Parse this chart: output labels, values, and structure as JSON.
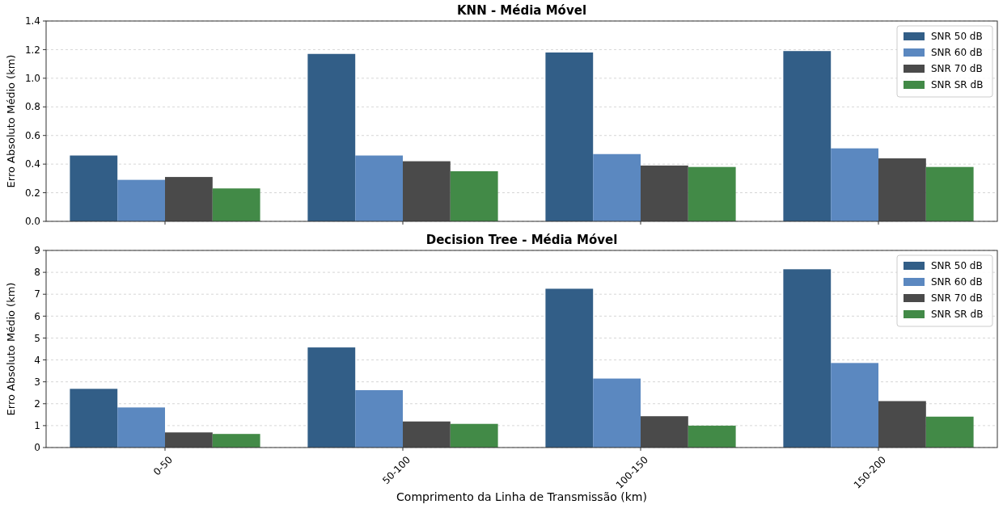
{
  "chart_data": [
    {
      "type": "bar",
      "title": "KNN - Média Móvel",
      "ylabel": "Erro Absoluto Médio (km)",
      "categories": [
        null,
        null,
        null,
        null
      ],
      "tick_labels": "y",
      "ylim": [
        0,
        1.4
      ],
      "yticks": [
        {
          "value": 0,
          "label": "0.0"
        },
        {
          "value": 0.2,
          "label": "0.2"
        },
        {
          "value": 0.4,
          "label": "0.4"
        },
        {
          "value": 0.6,
          "label": "0.6"
        },
        {
          "value": 0.8,
          "label": "0.8"
        },
        {
          "value": 1,
          "label": "1.0"
        },
        {
          "value": 1.2,
          "label": "1.2"
        },
        {
          "value": 1.4,
          "label": "1.4"
        }
      ],
      "grid": "y",
      "legend": "top right",
      "series": [
        {
          "name": "SNR 50 dB",
          "color": "#325e87",
          "values": [
            0.46,
            1.17,
            1.18,
            1.19
          ]
        },
        {
          "name": "SNR 60 dB",
          "color": "#5b88c0",
          "values": [
            0.29,
            0.46,
            0.47,
            0.51
          ]
        },
        {
          "name": "SNR 70 dB",
          "color": "#4a4a4a",
          "values": [
            0.31,
            0.42,
            0.39,
            0.44
          ]
        },
        {
          "name": "SNR SR dB",
          "color": "#428a47",
          "values": [
            0.23,
            0.35,
            0.38,
            0.38
          ]
        }
      ]
    },
    {
      "type": "bar",
      "title": "Decision Tree - Média Móvel",
      "xlabel": "Comprimento da Linha de Transmissão (km)",
      "ylabel": "Erro Absoluto Médio (km)",
      "categories": [
        "0-50",
        "50-100",
        "100-150",
        "150-200"
      ],
      "ylim": [
        0,
        9
      ],
      "yticks": [
        0,
        1,
        2,
        3,
        4,
        5,
        6,
        7,
        8,
        9
      ],
      "grid": "y",
      "legend": "top right",
      "series": [
        {
          "name": "SNR 50 dB",
          "color": "#325e87",
          "values": [
            2.68,
            4.57,
            7.25,
            8.14
          ]
        },
        {
          "name": "SNR 60 dB",
          "color": "#5b88c0",
          "values": [
            1.83,
            2.62,
            3.15,
            3.86
          ]
        },
        {
          "name": "SNR 70 dB",
          "color": "#4a4a4a",
          "values": [
            0.69,
            1.19,
            1.43,
            2.12
          ]
        },
        {
          "name": "SNR SR dB",
          "color": "#428a47",
          "values": [
            0.62,
            1.08,
            1.0,
            1.41
          ]
        }
      ]
    }
  ]
}
